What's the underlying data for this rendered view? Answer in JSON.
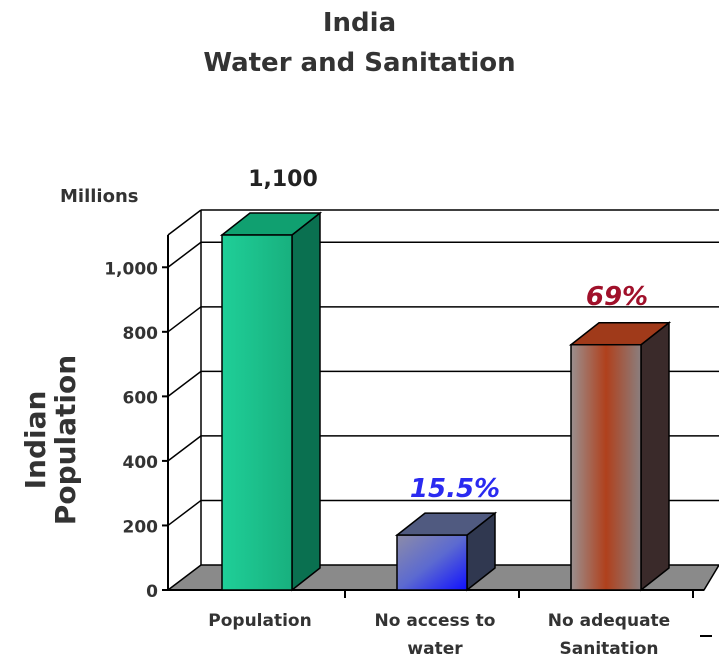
{
  "chart_data": {
    "type": "bar",
    "title_lines": [
      "India",
      "Water and Sanitation"
    ],
    "ylabel_lines": [
      "Indian",
      "Population"
    ],
    "unit_label": "Millions",
    "ylim": [
      0,
      1100
    ],
    "yticks": [
      0,
      200,
      400,
      600,
      800,
      1000
    ],
    "ytick_labels": [
      "0",
      "200",
      "400",
      "600",
      "800",
      "1,000"
    ],
    "grid": true,
    "categories": [
      [
        "Population"
      ],
      [
        "No access to",
        "water"
      ],
      [
        "No adequate",
        "Sanitation"
      ]
    ],
    "values": [
      1100,
      170,
      760
    ],
    "data_labels": [
      "1,100",
      "15.5%",
      "69%"
    ],
    "colors": {
      "bar1": "#1fcf98",
      "bar2": "#3b4fe0",
      "bar3": "#b03a1a",
      "label1": "#222222",
      "label2": "#2a2af0",
      "label3": "#a0102a"
    }
  }
}
